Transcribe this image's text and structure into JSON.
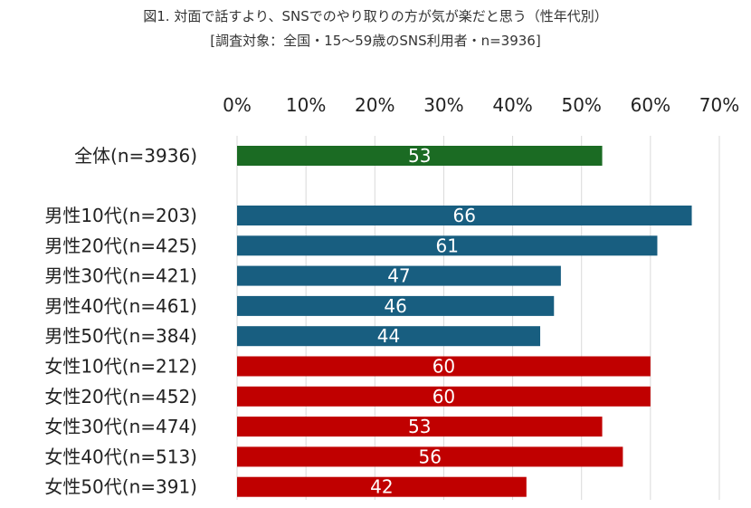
{
  "chart_data": {
    "type": "bar",
    "orientation": "horizontal",
    "title": "図1. 対面で話すより、SNSでのやり取りの方が気が楽だと思う（性年代別）",
    "subtitle": "[調査対象：全国・15～59歳のSNS利用者・n=3936]",
    "xlim": [
      0,
      70
    ],
    "x_ticks": [
      "0%",
      "10%",
      "20%",
      "30%",
      "40%",
      "50%",
      "60%",
      "70%"
    ],
    "grid": true,
    "categories": [
      "全体(n=3936)",
      "男性10代(n=203)",
      "男性20代(n=425)",
      "男性30代(n=421)",
      "男性40代(n=461)",
      "男性50代(n=384)",
      "女性10代(n=212)",
      "女性20代(n=452)",
      "女性30代(n=474)",
      "女性40代(n=513)",
      "女性50代(n=391)"
    ],
    "values": [
      53,
      66,
      61,
      47,
      46,
      44,
      60,
      60,
      53,
      56,
      42
    ],
    "groups": [
      "total",
      "male",
      "male",
      "male",
      "male",
      "male",
      "female",
      "female",
      "female",
      "female",
      "female"
    ],
    "colors": {
      "total": "#1b6b23",
      "male": "#185e80",
      "female": "#c00000"
    }
  }
}
